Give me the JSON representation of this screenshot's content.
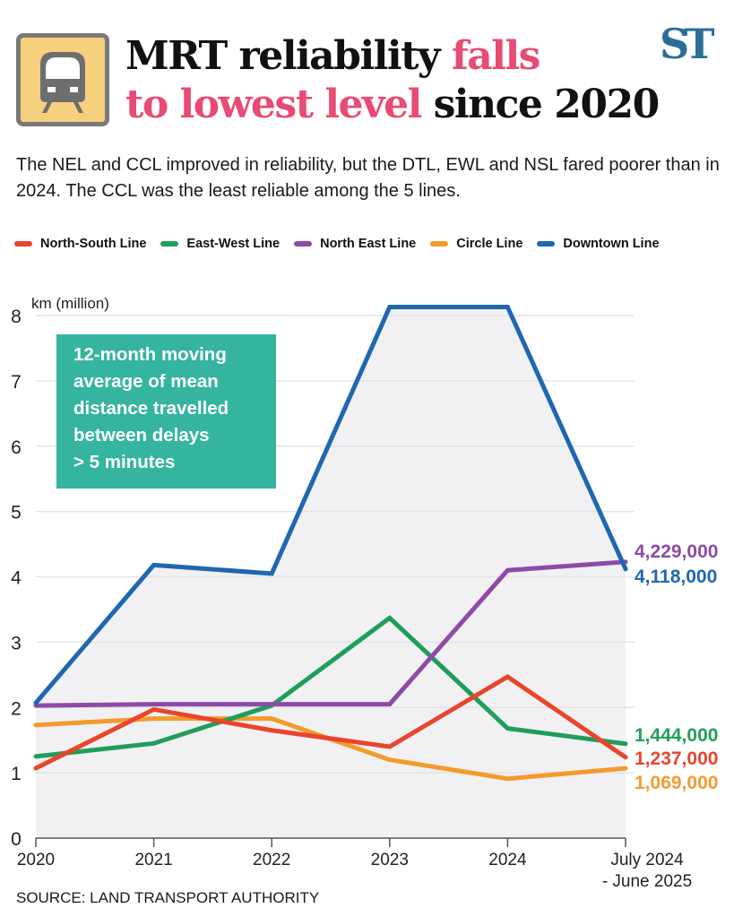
{
  "header": {
    "title_line1_black": "MRT reliability",
    "title_line1_pink": "falls",
    "title_line2_pink": "to lowest level",
    "title_line2_black": "since 2020",
    "logo": "ST",
    "icon": "train-icon",
    "highlight_color": "#e84b73",
    "logo_color": "#2a6e96"
  },
  "subtitle": "The NEL and CCL improved in reliability, but the DTL, EWL and NSL fared poorer than in 2024. The CCL was the least reliable among the 5 lines.",
  "note_lines": [
    "12-month moving",
    "average of mean",
    "distance travelled",
    "between delays",
    "> 5 minutes"
  ],
  "source": "SOURCE: LAND TRANSPORT AUTHORITY",
  "chart_data": {
    "type": "line",
    "title": "MRT reliability falls to lowest level since 2020",
    "ylabel": "km (million)",
    "xlabel": "",
    "ylim": [
      0,
      8
    ],
    "yticks": [
      "0",
      "1",
      "2",
      "3",
      "4",
      "5",
      "6",
      "7",
      "8"
    ],
    "categories": [
      "2020",
      "2021",
      "2022",
      "2023",
      "2024",
      "July 2024 - June 2025"
    ],
    "category_labels": [
      [
        "2020"
      ],
      [
        "2021"
      ],
      [
        "2022"
      ],
      [
        "2023"
      ],
      [
        "2024"
      ],
      [
        "July 2024",
        "- June 2025"
      ]
    ],
    "grid": true,
    "legend_position": "top",
    "series": [
      {
        "name": "North-South Line",
        "color": "#e8452c",
        "values": [
          1.07,
          1.97,
          1.65,
          1.4,
          2.47,
          1.237
        ],
        "end_label": "1,237,000"
      },
      {
        "name": "East-West Line",
        "color": "#1e9e5a",
        "values": [
          1.25,
          1.45,
          2.03,
          3.37,
          1.68,
          1.444
        ],
        "end_label": "1,444,000"
      },
      {
        "name": "North East Line",
        "color": "#8e4aa6",
        "values": [
          2.03,
          2.05,
          2.05,
          2.05,
          4.1,
          4.229
        ],
        "end_label": "4,229,000"
      },
      {
        "name": "Circle Line",
        "color": "#f39b2d",
        "values": [
          1.73,
          1.83,
          1.83,
          1.2,
          0.91,
          1.069
        ],
        "end_label": "1,069,000"
      },
      {
        "name": "Downtown Line",
        "color": "#1f67b1",
        "values": [
          2.07,
          4.18,
          4.05,
          8.13,
          8.13,
          4.118
        ],
        "end_label": "4,118,000"
      }
    ]
  }
}
